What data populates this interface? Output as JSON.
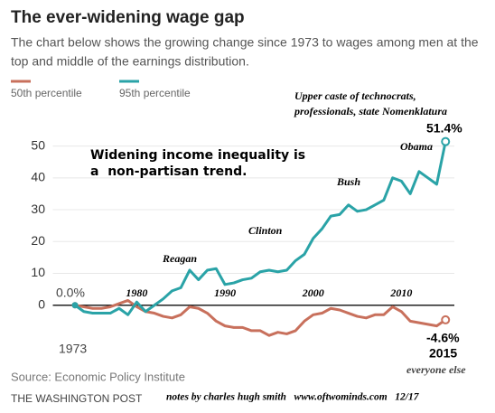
{
  "chart_data": {
    "type": "line",
    "title": "The ever-widening wage gap",
    "subtitle": [
      "The chart below shows the growing change since 1973 to wages among men at the",
      "top and middle of the earnings distribution."
    ],
    "x": [
      1973,
      1974,
      1975,
      1976,
      1977,
      1978,
      1979,
      1980,
      1981,
      1982,
      1983,
      1984,
      1985,
      1986,
      1987,
      1988,
      1989,
      1990,
      1991,
      1992,
      1993,
      1994,
      1995,
      1996,
      1997,
      1998,
      1999,
      2000,
      2001,
      2002,
      2003,
      2004,
      2005,
      2006,
      2007,
      2008,
      2009,
      2010,
      2011,
      2012,
      2013,
      2014,
      2015
    ],
    "series": [
      {
        "name": "50th percentile",
        "color": "#c8705c",
        "values": [
          0,
          -0.5,
          -1,
          -1,
          -0.5,
          0.5,
          1.5,
          -0.5,
          -2,
          -2.5,
          -3.5,
          -4,
          -3,
          -0.5,
          -1,
          -2.5,
          -5,
          -6.5,
          -7,
          -7,
          -8,
          -8,
          -9.5,
          -8.5,
          -9,
          -8,
          -5,
          -3,
          -2.5,
          -1,
          -1.5,
          -2.5,
          -3.5,
          -4,
          -3,
          -3,
          -0.5,
          -2,
          -5,
          -5.5,
          -6,
          -6.5,
          -4.6
        ]
      },
      {
        "name": "95th percentile",
        "color": "#2aa3a7",
        "values": [
          0,
          -2,
          -2.5,
          -2.5,
          -2.5,
          -1,
          -3,
          1,
          -2,
          0,
          2,
          4.5,
          5.5,
          11,
          8,
          11,
          11.5,
          6.5,
          7,
          8,
          8.5,
          10.5,
          11,
          10.5,
          11,
          14,
          16,
          21,
          24,
          28,
          28.5,
          31.5,
          29.5,
          30,
          31.5,
          33,
          40,
          39,
          35,
          42,
          40,
          38,
          51.4
        ]
      }
    ],
    "xlim": [
      1971,
      2016
    ],
    "xticks": [
      1980,
      1990,
      2000,
      2010
    ],
    "ylim": [
      -12,
      55
    ],
    "yticks": [
      0,
      10,
      20,
      30,
      40,
      50
    ],
    "grid": true,
    "annotations": [
      "Upper caste of technocrats,",
      "professionals, state Nomenklatura",
      "Widening income inequality is",
      "a  non-partisan trend.",
      "Reagan",
      "Clinton",
      "Bush",
      "Obama",
      "51.4%",
      "-4.6%",
      "2015",
      "0.0%",
      "1973",
      "everyone else"
    ],
    "source": "Source: Economic Policy Institute",
    "publisher": "THE WASHINGTON POST",
    "notes": "notes by charles hugh smith   www.oftwominds.com   12/17"
  }
}
